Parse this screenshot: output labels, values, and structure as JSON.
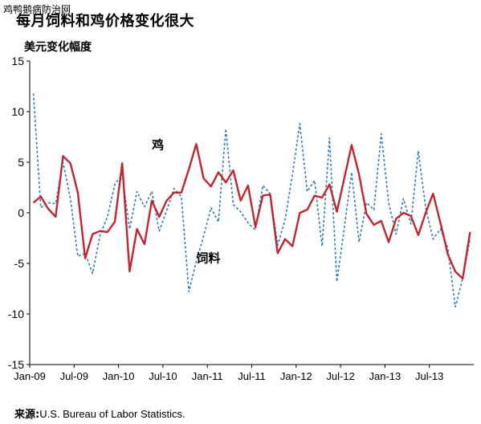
{
  "watermark": "鸡鸭鹅病防治网",
  "title": "每月饲料和鸡价格变化很大",
  "source": {
    "label": "来源:",
    "text": "U.S. Bureau of Labor Statistics."
  },
  "chart_data": {
    "type": "line",
    "title": "每月饲料和鸡价格变化很大",
    "ylabel": "美元变化幅度",
    "xlabel": "",
    "ylim": [
      -15,
      15
    ],
    "yticks": [
      15,
      10,
      5,
      0,
      -5,
      -10,
      -15
    ],
    "x_tick_labels": [
      "Jan-09",
      "Jul-09",
      "Jan-10",
      "Jul-10",
      "Jan-11",
      "Jul-11",
      "Jan-12",
      "Jul-12",
      "Jan-13",
      "Jul-13"
    ],
    "x_start": "Jan-09",
    "grid": false,
    "series": [
      {
        "name": "鸡",
        "color": "#c0262d",
        "style": "solid",
        "values": [
          1.0,
          1.6,
          0.4,
          -0.4,
          5.6,
          4.9,
          2.0,
          -4.5,
          -2.1,
          -1.8,
          -1.9,
          -0.9,
          4.9,
          -5.8,
          -1.6,
          -3.1,
          1.2,
          -0.4,
          1.2,
          2.0,
          2.0,
          4.3,
          6.8,
          3.4,
          2.6,
          4.0,
          3.0,
          4.2,
          1.2,
          2.7,
          -1.4,
          1.7,
          1.8,
          -4.0,
          -2.6,
          -3.3,
          0.0,
          0.3,
          1.7,
          1.5,
          2.8,
          0.1,
          3.4,
          6.7,
          3.8,
          -0.1,
          -1.2,
          -0.8,
          -2.9,
          -0.6,
          0.0,
          -0.3,
          -2.2,
          0.0,
          1.9,
          -1.0,
          -4.1,
          -5.8,
          -6.5,
          -1.9
        ]
      },
      {
        "name": "饲料",
        "color": "#2d7bb8",
        "style": "dashed",
        "values": [
          11.8,
          0.5,
          1.0,
          0.9,
          5.0,
          1.4,
          -4.3,
          -4.0,
          -6.0,
          -2.2,
          -0.4,
          2.8,
          3.8,
          -1.6,
          2.1,
          0.6,
          2.1,
          -1.8,
          0.2,
          2.4,
          1.6,
          -7.8,
          -4.8,
          -2.3,
          0.5,
          -0.9,
          8.3,
          0.8,
          0.1,
          -1.0,
          -1.7,
          2.7,
          1.9,
          -3.2,
          -0.7,
          3.8,
          8.8,
          2.1,
          3.2,
          -3.3,
          7.4,
          -6.8,
          -1.5,
          4.0,
          -2.9,
          1.0,
          0.3,
          7.8,
          1.0,
          -2.1,
          1.4,
          -1.1,
          6.1,
          0.5,
          -2.6,
          -1.6,
          -3.5,
          -9.3,
          -6.5,
          -2.6
        ]
      }
    ],
    "annotations": [
      {
        "text": "鸡",
        "x": 16,
        "y": 6.3
      },
      {
        "text": "饲料",
        "x": 22,
        "y": -4.9
      }
    ]
  }
}
